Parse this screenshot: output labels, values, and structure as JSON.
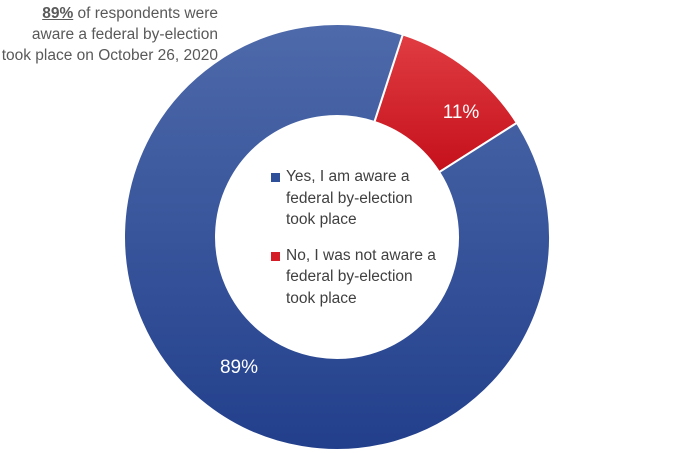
{
  "callout": {
    "highlight": "89%",
    "text": " of respondents were aware a federal by-election took place on October 26, 2020"
  },
  "chart_data": {
    "type": "pie",
    "variant": "donut",
    "title": "",
    "slices": [
      {
        "label": "Yes, I am aware a federal by-election took place",
        "value": 89,
        "data_label": "89%",
        "color": "#2e4f9a"
      },
      {
        "label": "No, I was not aware a federal by-election took place",
        "value": 11,
        "data_label": "11%",
        "color": "#d41d27"
      }
    ],
    "legend_position": "center"
  }
}
